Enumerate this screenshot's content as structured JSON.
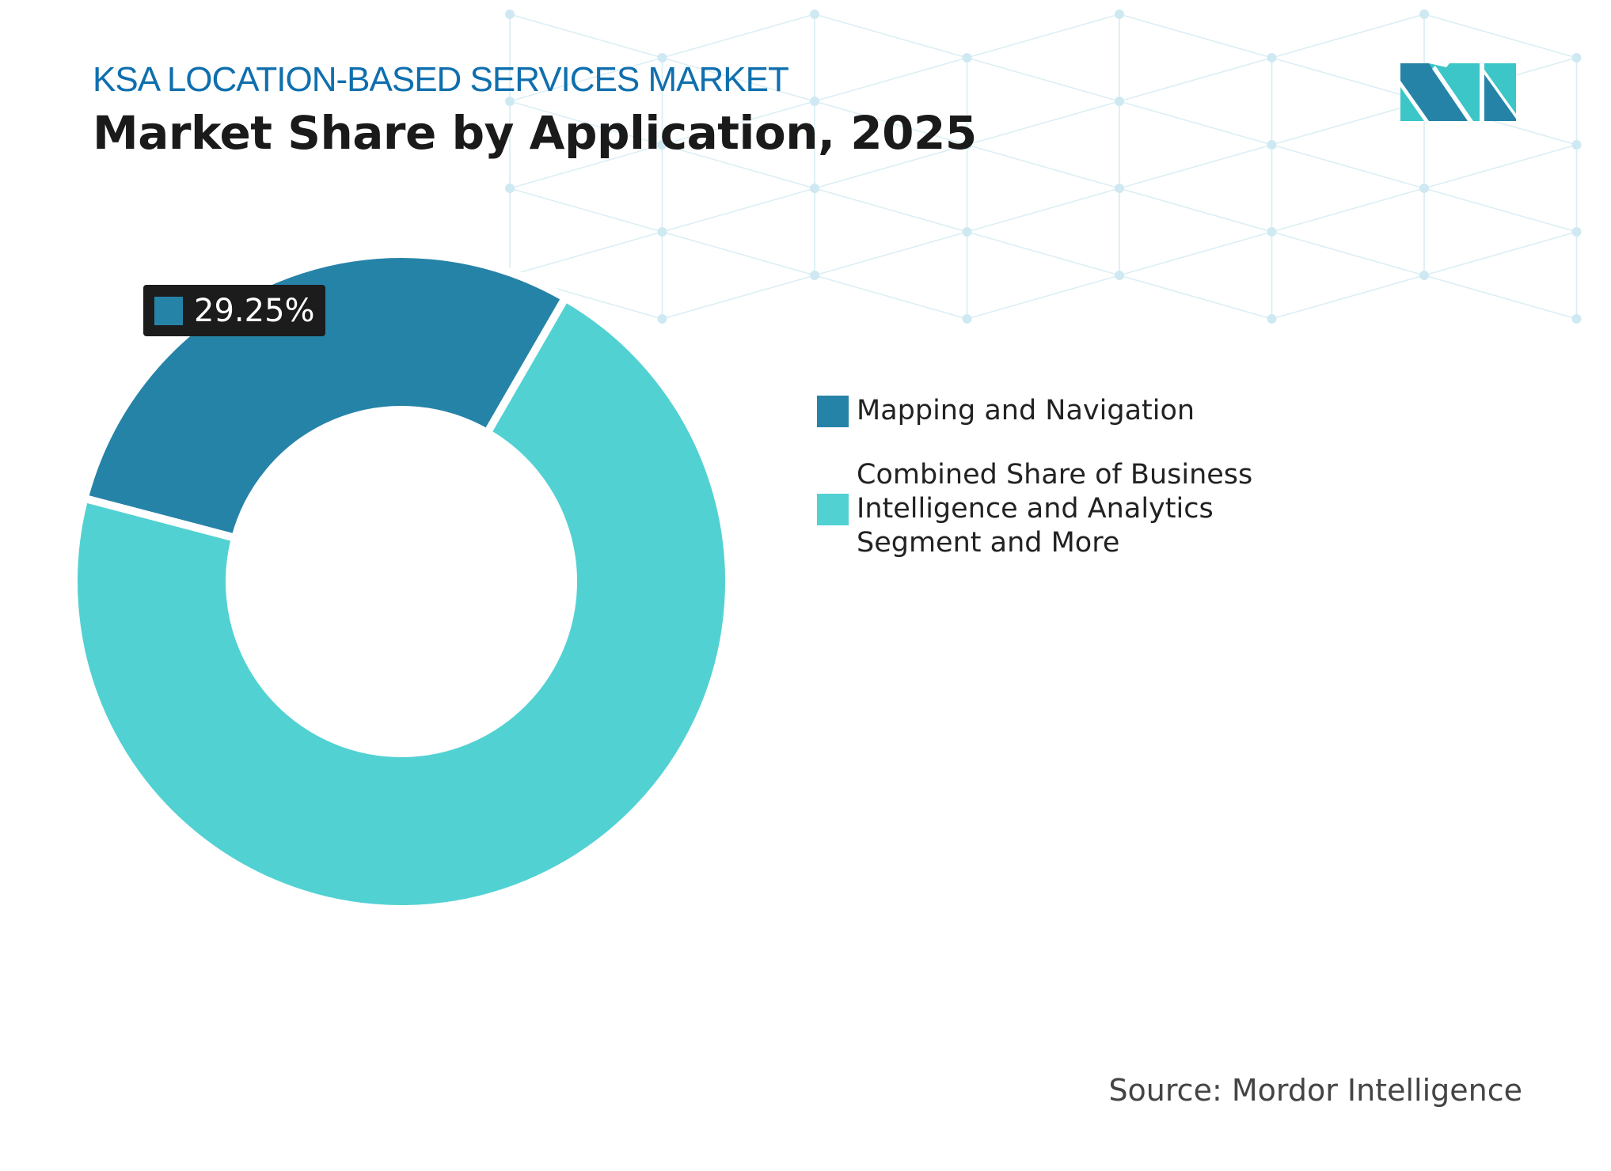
{
  "header": {
    "subtitle": "KSA LOCATION-BASED SERVICES MARKET",
    "title": "Market Share by Application, 2025"
  },
  "chart_data": {
    "type": "pie",
    "variant": "donut",
    "title": "Market Share by Application, 2025",
    "categories": [
      "Mapping and Navigation",
      "Combined Share of Business Intelligence and Analytics Segment and More"
    ],
    "values": [
      29.25,
      70.75
    ],
    "colors": [
      "#2683a8",
      "#52d1d3"
    ],
    "data_labels": [
      {
        "category": "Mapping and Navigation",
        "text": "29.25%"
      }
    ],
    "legend_position": "right"
  },
  "legend": {
    "items": [
      {
        "label": "Mapping and Navigation",
        "color": "#2683a8"
      },
      {
        "label": "Combined Share of Business Intelligence and Analytics Segment and More",
        "color": "#52d1d3"
      }
    ]
  },
  "callout": {
    "text": "29.25%"
  },
  "source": "Source: Mordor Intelligence",
  "logo": {
    "text": "MI",
    "colors": [
      "#2683a8",
      "#3cc6c8"
    ]
  }
}
